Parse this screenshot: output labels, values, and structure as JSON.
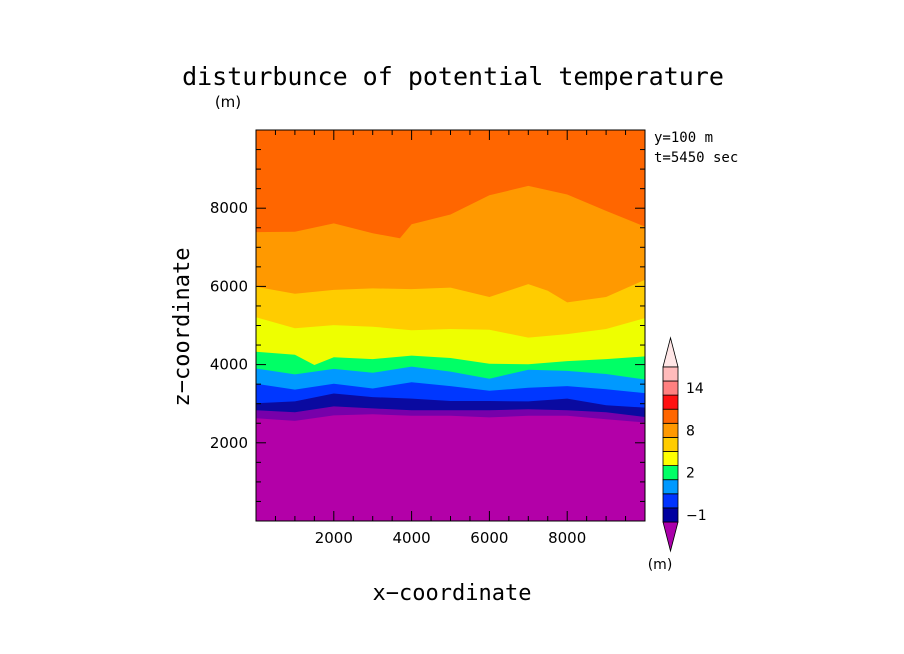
{
  "chart_data": {
    "type": "contour",
    "title": "disturbunce of potential temperature",
    "unit_label": "(m)",
    "xlabel": "x−coordinate",
    "ylabel": "z−coordinate",
    "xlim": [
      0,
      10000
    ],
    "ylim": [
      0,
      10000
    ],
    "x_ticks": [
      2000,
      4000,
      6000,
      8000
    ],
    "x_tick_labels": [
      "2000",
      "4000",
      "6000",
      "8000"
    ],
    "y_ticks": [
      2000,
      4000,
      6000,
      8000
    ],
    "y_tick_labels": [
      "2000",
      "4000",
      "6000",
      "8000"
    ],
    "annotations": [
      "y=100 m",
      "t=5450 sec"
    ],
    "colorbar": {
      "unit_label": "(m)",
      "tick_labels": [
        {
          "level": 0,
          "text": "−1"
        },
        {
          "level": 3,
          "text": "2"
        },
        {
          "level": 6,
          "text": "8"
        },
        {
          "level": 9,
          "text": "14"
        }
      ],
      "colors": [
        "#aa00aa",
        "#0000a0",
        "#0033ff",
        "#0099ff",
        "#00ff66",
        "#ffff00",
        "#ffcc00",
        "#ff9900",
        "#ff6600",
        "#ff1111",
        "#ff8080",
        "#ffbbbb",
        "#ffe6e6"
      ]
    },
    "contour_bands": [
      {
        "color": "#b300a8",
        "top": [
          [
            0,
            2630
          ],
          [
            1000,
            2560
          ],
          [
            2000,
            2700
          ],
          [
            3000,
            2730
          ],
          [
            4000,
            2690
          ],
          [
            5000,
            2690
          ],
          [
            6000,
            2650
          ],
          [
            7000,
            2690
          ],
          [
            8000,
            2690
          ],
          [
            9000,
            2600
          ],
          [
            10000,
            2520
          ]
        ]
      },
      {
        "color": "#7700aa",
        "top": [
          [
            0,
            2830
          ],
          [
            1000,
            2780
          ],
          [
            2000,
            2930
          ],
          [
            3000,
            2880
          ],
          [
            4000,
            2830
          ],
          [
            5000,
            2830
          ],
          [
            6000,
            2830
          ],
          [
            7000,
            2860
          ],
          [
            8000,
            2830
          ],
          [
            9000,
            2780
          ],
          [
            10000,
            2660
          ]
        ]
      },
      {
        "color": "#0a0aa0",
        "top": [
          [
            0,
            3010
          ],
          [
            1000,
            3060
          ],
          [
            2000,
            3260
          ],
          [
            3000,
            3170
          ],
          [
            4000,
            3130
          ],
          [
            5000,
            3070
          ],
          [
            6000,
            3070
          ],
          [
            7000,
            3060
          ],
          [
            8000,
            3130
          ],
          [
            9000,
            2960
          ],
          [
            10000,
            2900
          ]
        ]
      },
      {
        "color": "#0037ff",
        "top": [
          [
            0,
            3510
          ],
          [
            1000,
            3360
          ],
          [
            2000,
            3510
          ],
          [
            3000,
            3390
          ],
          [
            4000,
            3550
          ],
          [
            5000,
            3450
          ],
          [
            6000,
            3330
          ],
          [
            7000,
            3410
          ],
          [
            8000,
            3450
          ],
          [
            9000,
            3370
          ],
          [
            10000,
            3270
          ]
        ]
      },
      {
        "color": "#0099ff",
        "top": [
          [
            0,
            3900
          ],
          [
            1000,
            3750
          ],
          [
            2000,
            3890
          ],
          [
            3000,
            3790
          ],
          [
            4000,
            3950
          ],
          [
            5000,
            3820
          ],
          [
            6000,
            3640
          ],
          [
            7000,
            3870
          ],
          [
            8000,
            3840
          ],
          [
            9000,
            3760
          ],
          [
            10000,
            3620
          ]
        ]
      },
      {
        "color": "#00ff66",
        "top": [
          [
            0,
            4330
          ],
          [
            1000,
            4250
          ],
          [
            1500,
            3990
          ],
          [
            2000,
            4190
          ],
          [
            3000,
            4140
          ],
          [
            4000,
            4230
          ],
          [
            5000,
            4170
          ],
          [
            6000,
            4020
          ],
          [
            7000,
            4010
          ],
          [
            8000,
            4090
          ],
          [
            9000,
            4140
          ],
          [
            10000,
            4210
          ]
        ]
      },
      {
        "color": "#eeff00",
        "top": [
          [
            0,
            5210
          ],
          [
            1000,
            4930
          ],
          [
            2000,
            5010
          ],
          [
            3000,
            4970
          ],
          [
            4000,
            4880
          ],
          [
            5000,
            4910
          ],
          [
            6000,
            4890
          ],
          [
            7000,
            4690
          ],
          [
            8000,
            4780
          ],
          [
            9000,
            4910
          ],
          [
            10000,
            5190
          ]
        ]
      },
      {
        "color": "#ffcc00",
        "top": [
          [
            0,
            5990
          ],
          [
            1000,
            5810
          ],
          [
            2000,
            5910
          ],
          [
            3000,
            5950
          ],
          [
            4000,
            5930
          ],
          [
            5000,
            5970
          ],
          [
            6000,
            5730
          ],
          [
            7000,
            6060
          ],
          [
            7500,
            5890
          ],
          [
            8000,
            5590
          ],
          [
            9000,
            5730
          ],
          [
            10000,
            6170
          ]
        ]
      },
      {
        "color": "#ff9900",
        "top": [
          [
            0,
            7390
          ],
          [
            1000,
            7400
          ],
          [
            2000,
            7610
          ],
          [
            3000,
            7360
          ],
          [
            3700,
            7230
          ],
          [
            4000,
            7590
          ],
          [
            5000,
            7840
          ],
          [
            6000,
            8330
          ],
          [
            7000,
            8570
          ],
          [
            8000,
            8350
          ],
          [
            9000,
            7930
          ],
          [
            10000,
            7530
          ]
        ]
      },
      {
        "color": "#ff6600",
        "top": [
          [
            0,
            10000
          ],
          [
            10000,
            10000
          ]
        ]
      },
      {
        "color": "#ff1515",
        "top": [
          [
            0,
            10000
          ],
          [
            10000,
            10000
          ]
        ]
      }
    ]
  }
}
